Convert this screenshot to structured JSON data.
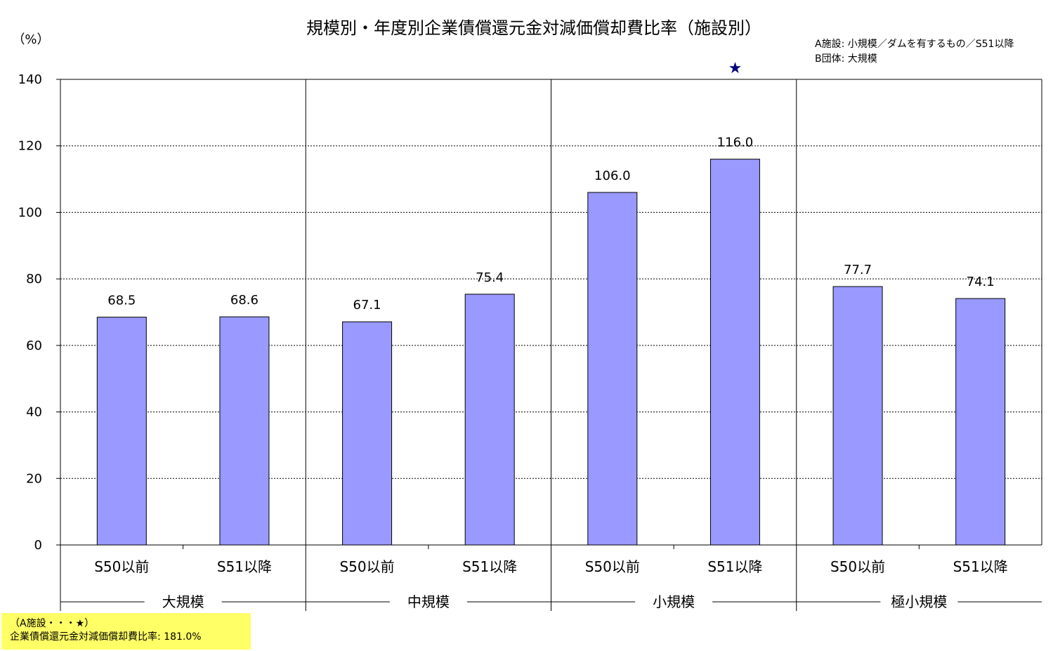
{
  "unit_label": "（%）",
  "notes": {
    "a_facility": "A施設: 小規模／ダムを有するもの／S51以降",
    "b_group": "B団体: 大規模"
  },
  "highlight_marker": "★",
  "callout": {
    "line1": "（A施設・・・★）",
    "line2": "企業債償還元金対減価償却費比率: 181.0%",
    "background": "#ffff66"
  },
  "colors": {
    "bar_fill": "#9999ff",
    "bar_stroke": "#000000",
    "marker": "#000080"
  },
  "chart_data": {
    "type": "bar",
    "title": "規模別・年度別企業債償還元金対減価償却費比率（施設別）",
    "xlabel": "",
    "ylabel": "",
    "ylim": [
      0,
      140
    ],
    "yticks": [
      0,
      20,
      40,
      60,
      80,
      100,
      120,
      140
    ],
    "grid": true,
    "groups": [
      {
        "label": "大規模",
        "categories": [
          "S50以前",
          "S51以降"
        ],
        "values": [
          68.5,
          68.6
        ],
        "value_labels": [
          "68.5",
          "68.6"
        ]
      },
      {
        "label": "中規模",
        "categories": [
          "S50以前",
          "S51以降"
        ],
        "values": [
          67.1,
          75.4
        ],
        "value_labels": [
          "67.1",
          "75.4"
        ]
      },
      {
        "label": "小規模",
        "categories": [
          "S50以前",
          "S51以降"
        ],
        "values": [
          106.0,
          116.0
        ],
        "value_labels": [
          "106.0",
          "116.0"
        ]
      },
      {
        "label": "極小規模",
        "categories": [
          "S50以前",
          "S51以降"
        ],
        "values": [
          77.7,
          74.1
        ],
        "value_labels": [
          "77.7",
          "74.1"
        ]
      }
    ],
    "highlight": {
      "group": 2,
      "index": 1,
      "marker": "★",
      "value": 181.0
    }
  }
}
